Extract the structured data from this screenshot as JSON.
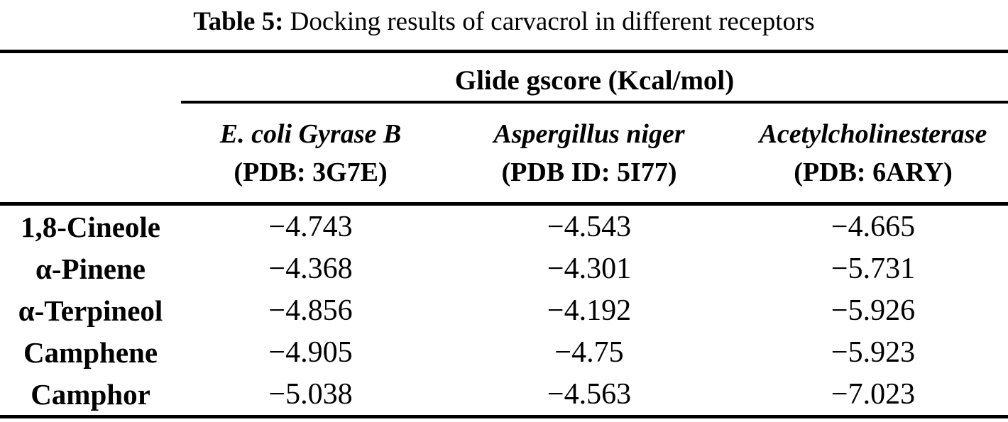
{
  "caption": {
    "label": "Table 5:",
    "text": "Docking results of carvacrol in different receptors"
  },
  "group_header": "Glide gscore (Kcal/mol)",
  "columns": [
    {
      "name": "E. coli Gyrase B",
      "pdb": "(PDB: 3G7E)"
    },
    {
      "name": "Aspergillus niger",
      "pdb": "(PDB ID: 5I77)"
    },
    {
      "name": "Acetylcholinesterase",
      "pdb": "(PDB: 6ARY)"
    }
  ],
  "rows": [
    {
      "compound": "1,8-Cineole",
      "values": [
        "−4.743",
        "−4.543",
        "−4.665"
      ]
    },
    {
      "compound": "α-Pinene",
      "values": [
        "−4.368",
        "−4.301",
        "−5.731"
      ]
    },
    {
      "compound": "α-Terpineol",
      "values": [
        "−4.856",
        "−4.192",
        "−5.926"
      ]
    },
    {
      "compound": "Camphene",
      "values": [
        "−4.905",
        "−4.75",
        "−5.923"
      ]
    },
    {
      "compound": "Camphor",
      "values": [
        "−5.038",
        "−4.563",
        "−7.023"
      ]
    }
  ],
  "colors": {
    "text": "#000000",
    "background": "#ffffff",
    "rule": "#000000"
  }
}
